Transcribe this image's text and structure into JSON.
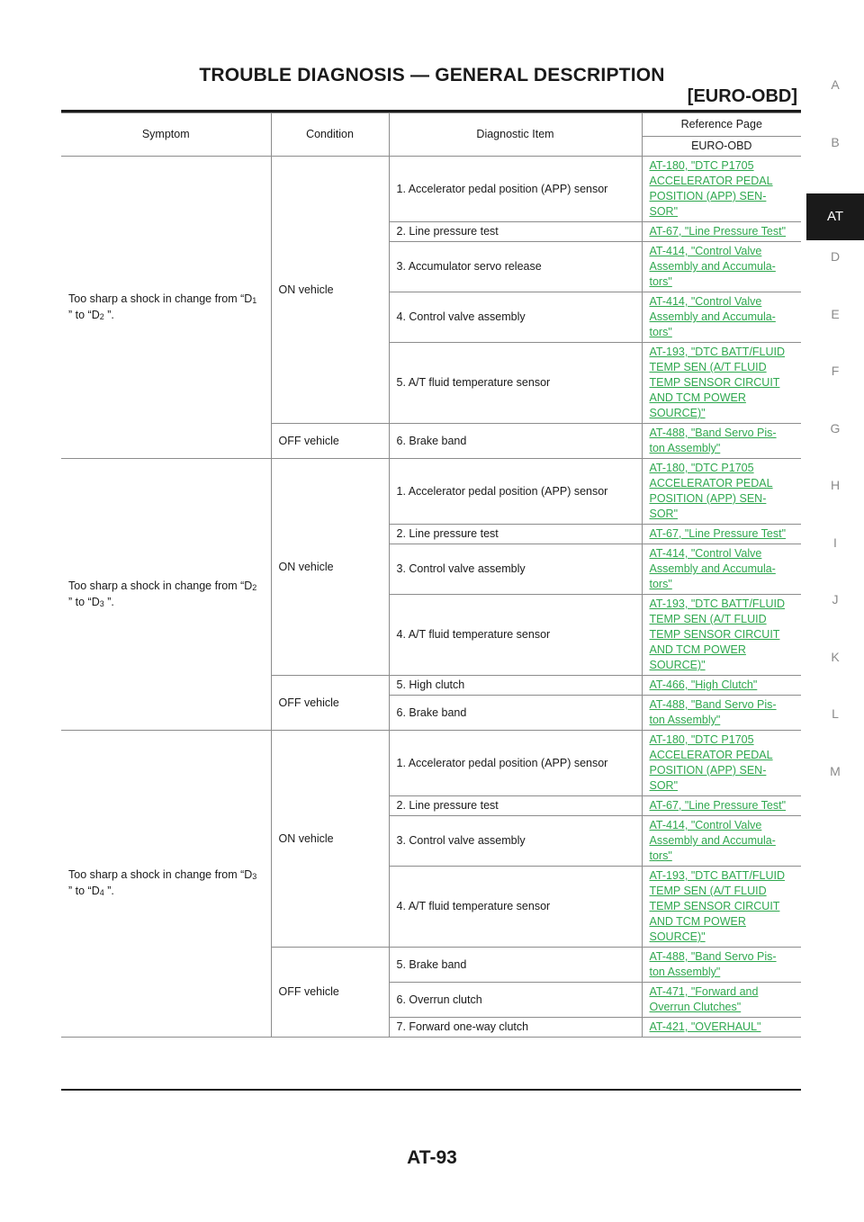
{
  "header": {
    "title": "TROUBLE DIAGNOSIS — GENERAL DESCRIPTION",
    "section": "[EURO-OBD]"
  },
  "side_tabs": [
    "A",
    "B",
    "AT",
    "D",
    "E",
    "F",
    "G",
    "H",
    "I",
    "J",
    "K",
    "L",
    "M"
  ],
  "side_tab_active": "AT",
  "table": {
    "headers": {
      "symptom": "Symptom",
      "condition": "Condition",
      "diagnostic_item": "Diagnostic Item",
      "reference_page": "Reference Page",
      "euro_obd": "EURO-OBD"
    },
    "groups": [
      {
        "symptom": {
          "pre": "Too sharp a shock in change from “D",
          "n1": "1",
          "mid": " ” to “D",
          "n2": "2",
          "post": " ”."
        },
        "conditions": [
          {
            "label": "ON vehicle",
            "items": [
              {
                "item": "1. Accelerator pedal position (APP) sensor",
                "ref": [
                  "AT-180, \"DTC P1705 ",
                  "ACCELERATOR PEDAL ",
                  "POSITION (APP) SEN-",
                  "SOR\""
                ]
              },
              {
                "item": "2. Line pressure test",
                "ref": [
                  "AT-67, \"Line Pressure Test\""
                ]
              },
              {
                "item": "3. Accumulator servo release",
                "ref": [
                  "AT-414, \"Control Valve ",
                  "Assembly and Accumula-",
                  "tors\""
                ]
              },
              {
                "item": "4. Control valve assembly",
                "ref": [
                  "AT-414, \"Control Valve ",
                  "Assembly and Accumula-",
                  "tors\""
                ]
              },
              {
                "item": "5. A/T fluid temperature sensor",
                "ref": [
                  "AT-193, \"DTC BATT/FLUID ",
                  "TEMP SEN (A/T FLUID ",
                  "TEMP SENSOR CIRCUIT ",
                  "AND TCM POWER ",
                  "SOURCE)\""
                ]
              }
            ]
          },
          {
            "label": "OFF vehicle",
            "items": [
              {
                "item": "6. Brake band",
                "ref": [
                  "AT-488, \"Band Servo Pis-",
                  "ton Assembly\""
                ]
              }
            ]
          }
        ]
      },
      {
        "symptom": {
          "pre": "Too sharp a shock in change from “D",
          "n1": "2",
          "mid": " ” to “D",
          "n2": "3",
          "post": " ”."
        },
        "conditions": [
          {
            "label": "ON vehicle",
            "items": [
              {
                "item": "1. Accelerator pedal position (APP) sensor",
                "ref": [
                  "AT-180, \"DTC P1705 ",
                  "ACCELERATOR PEDAL ",
                  "POSITION (APP) SEN-",
                  "SOR\""
                ]
              },
              {
                "item": "2. Line pressure test",
                "ref": [
                  "AT-67, \"Line Pressure Test\""
                ]
              },
              {
                "item": "3. Control valve assembly",
                "ref": [
                  "AT-414, \"Control Valve ",
                  "Assembly and Accumula-",
                  "tors\""
                ]
              },
              {
                "item": "4. A/T fluid temperature sensor",
                "ref": [
                  "AT-193, \"DTC BATT/FLUID ",
                  "TEMP SEN (A/T FLUID ",
                  "TEMP SENSOR CIRCUIT ",
                  "AND TCM POWER ",
                  "SOURCE)\""
                ]
              }
            ]
          },
          {
            "label": "OFF vehicle",
            "items": [
              {
                "item": "5. High clutch",
                "ref": [
                  "AT-466, \"High Clutch\""
                ]
              },
              {
                "item": "6. Brake band",
                "ref": [
                  "AT-488, \"Band Servo Pis-",
                  "ton Assembly\""
                ]
              }
            ]
          }
        ]
      },
      {
        "symptom": {
          "pre": "Too sharp a shock in change from “D",
          "n1": "3",
          "mid": " ” to “D",
          "n2": "4",
          "post": " ”."
        },
        "conditions": [
          {
            "label": "ON vehicle",
            "items": [
              {
                "item": "1. Accelerator pedal position (APP) sensor",
                "ref": [
                  "AT-180, \"DTC P1705 ",
                  "ACCELERATOR PEDAL ",
                  "POSITION (APP) SEN-",
                  "SOR\""
                ]
              },
              {
                "item": "2. Line pressure test",
                "ref": [
                  "AT-67, \"Line Pressure Test\""
                ]
              },
              {
                "item": "3. Control valve assembly",
                "ref": [
                  "AT-414, \"Control Valve ",
                  "Assembly and Accumula-",
                  "tors\""
                ]
              },
              {
                "item": "4. A/T fluid temperature sensor",
                "ref": [
                  "AT-193, \"DTC BATT/FLUID ",
                  "TEMP SEN (A/T FLUID ",
                  "TEMP SENSOR CIRCUIT ",
                  "AND TCM POWER ",
                  "SOURCE)\""
                ]
              }
            ]
          },
          {
            "label": "OFF vehicle",
            "items": [
              {
                "item": "5. Brake band",
                "ref": [
                  "AT-488, \"Band Servo Pis-",
                  "ton Assembly\""
                ]
              },
              {
                "item": "6. Overrun clutch",
                "ref": [
                  "AT-471, \"Forward and ",
                  "Overrun Clutches\""
                ]
              },
              {
                "item": "7. Forward one-way clutch",
                "ref": [
                  "AT-421, \"OVERHAUL\""
                ]
              }
            ]
          }
        ]
      }
    ]
  },
  "footer": {
    "page_number": "AT-93"
  },
  "colors": {
    "link": "#2fa84f",
    "text": "#1a1a1a",
    "side_tab_inactive": "#8a8a8a"
  }
}
